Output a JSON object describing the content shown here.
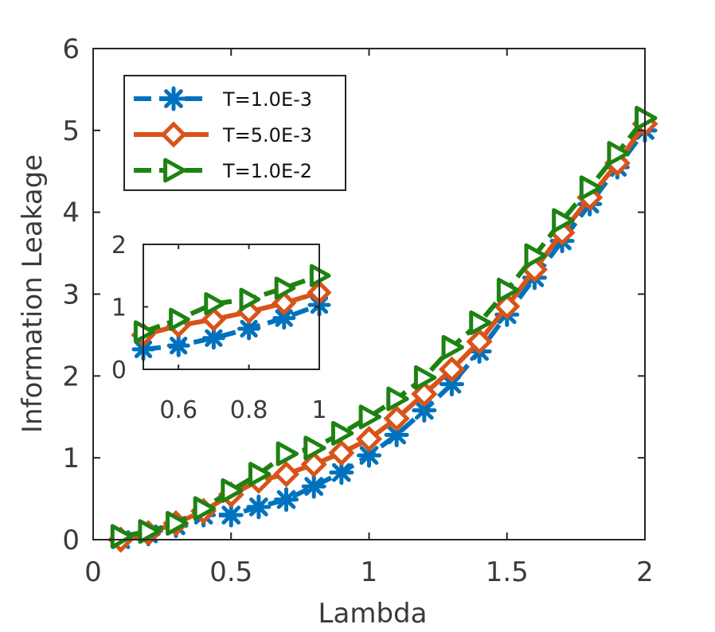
{
  "chart_data": {
    "type": "line",
    "xlabel": "Lambda",
    "ylabel": "Information Leakage",
    "xlim": [
      0,
      2
    ],
    "ylim": [
      0,
      6
    ],
    "xticks": [
      0,
      0.5,
      1,
      1.5,
      2
    ],
    "xtick_labels": [
      "0",
      "0.5",
      "1",
      "1.5",
      "2"
    ],
    "yticks": [
      0,
      1,
      2,
      3,
      4,
      5,
      6
    ],
    "ytick_labels": [
      "0",
      "1",
      "2",
      "3",
      "4",
      "5",
      "6"
    ],
    "grid": false,
    "legend_position": "top-left",
    "x": [
      0.1,
      0.2,
      0.3,
      0.4,
      0.5,
      0.6,
      0.7,
      0.8,
      0.9,
      1.0,
      1.1,
      1.2,
      1.3,
      1.4,
      1.5,
      1.6,
      1.7,
      1.8,
      1.9,
      2.0
    ],
    "series": [
      {
        "name": "T=1.0E-3",
        "color": "#0072BD",
        "line": "dashed",
        "marker": "asterisk",
        "values": [
          0.0,
          0.07,
          0.17,
          0.3,
          0.3,
          0.4,
          0.49,
          0.65,
          0.82,
          1.03,
          1.28,
          1.58,
          1.9,
          2.3,
          2.75,
          3.2,
          3.65,
          4.1,
          4.55,
          5.0
        ]
      },
      {
        "name": "T=5.0E-3",
        "color": "#D95319",
        "line": "solid",
        "marker": "diamond",
        "values": [
          0.0,
          0.08,
          0.2,
          0.35,
          0.55,
          0.72,
          0.8,
          0.92,
          1.06,
          1.23,
          1.48,
          1.78,
          2.08,
          2.42,
          2.85,
          3.3,
          3.75,
          4.18,
          4.6,
          5.08
        ]
      },
      {
        "name": "T=1.0E-2",
        "color": "#1E8212",
        "line": "dashed",
        "marker": "triangle-right",
        "values": [
          0.04,
          0.1,
          0.2,
          0.38,
          0.6,
          0.8,
          1.05,
          1.12,
          1.3,
          1.5,
          1.72,
          1.98,
          2.35,
          2.65,
          3.05,
          3.47,
          3.9,
          4.3,
          4.72,
          5.15
        ]
      }
    ],
    "inset": {
      "xlim": [
        0.5,
        1
      ],
      "ylim": [
        0,
        2
      ],
      "xticks": [
        0.6,
        0.8,
        1
      ],
      "xtick_labels": [
        "0.6",
        "0.8",
        "1"
      ],
      "yticks": [
        0,
        1,
        2
      ],
      "ytick_labels": [
        "0",
        "1",
        "2"
      ],
      "x": [
        0.5,
        0.6,
        0.7,
        0.8,
        0.9,
        1.0
      ],
      "series": [
        {
          "name": "T=1.0E-3",
          "values": [
            0.32,
            0.38,
            0.5,
            0.65,
            0.82,
            1.03
          ]
        },
        {
          "name": "T=5.0E-3",
          "values": [
            0.55,
            0.7,
            0.8,
            0.92,
            1.06,
            1.23
          ]
        },
        {
          "name": "T=1.0E-2",
          "values": [
            0.6,
            0.8,
            1.05,
            1.12,
            1.3,
            1.5
          ]
        }
      ]
    }
  }
}
